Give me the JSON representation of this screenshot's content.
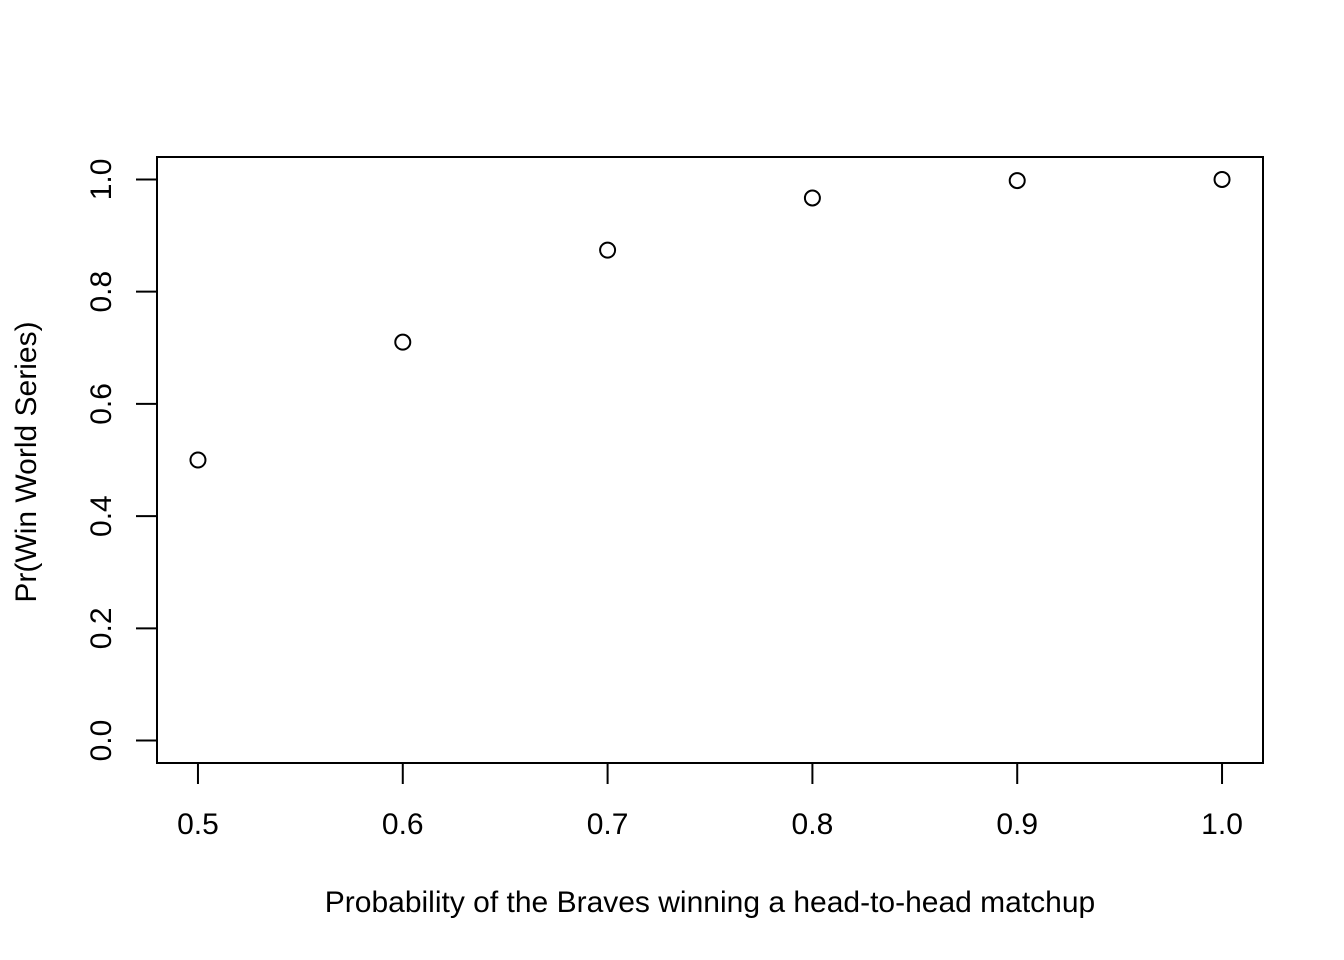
{
  "chart_data": {
    "type": "scatter",
    "title": "",
    "xlabel": "Probability of the Braves winning a head-to-head matchup",
    "ylabel": "Pr(Win World Series)",
    "x": [
      0.5,
      0.6,
      0.7,
      0.8,
      0.9,
      1.0
    ],
    "y": [
      0.5,
      0.71,
      0.874,
      0.967,
      0.998,
      1.0
    ],
    "xlim": [
      0.48,
      1.02
    ],
    "ylim": [
      -0.04,
      1.04
    ],
    "xticks": [
      0.5,
      0.6,
      0.7,
      0.8,
      0.9,
      1.0
    ],
    "xtick_labels": [
      "0.5",
      "0.6",
      "0.7",
      "0.8",
      "0.9",
      "1.0"
    ],
    "yticks": [
      0.0,
      0.2,
      0.4,
      0.6,
      0.8,
      1.0
    ],
    "ytick_labels": [
      "0.0",
      "0.2",
      "0.4",
      "0.6",
      "0.8",
      "1.0"
    ],
    "marker": "open-circle",
    "grid": false,
    "colors": {
      "points": "#000000",
      "axes": "#000000",
      "background": "#ffffff"
    }
  }
}
